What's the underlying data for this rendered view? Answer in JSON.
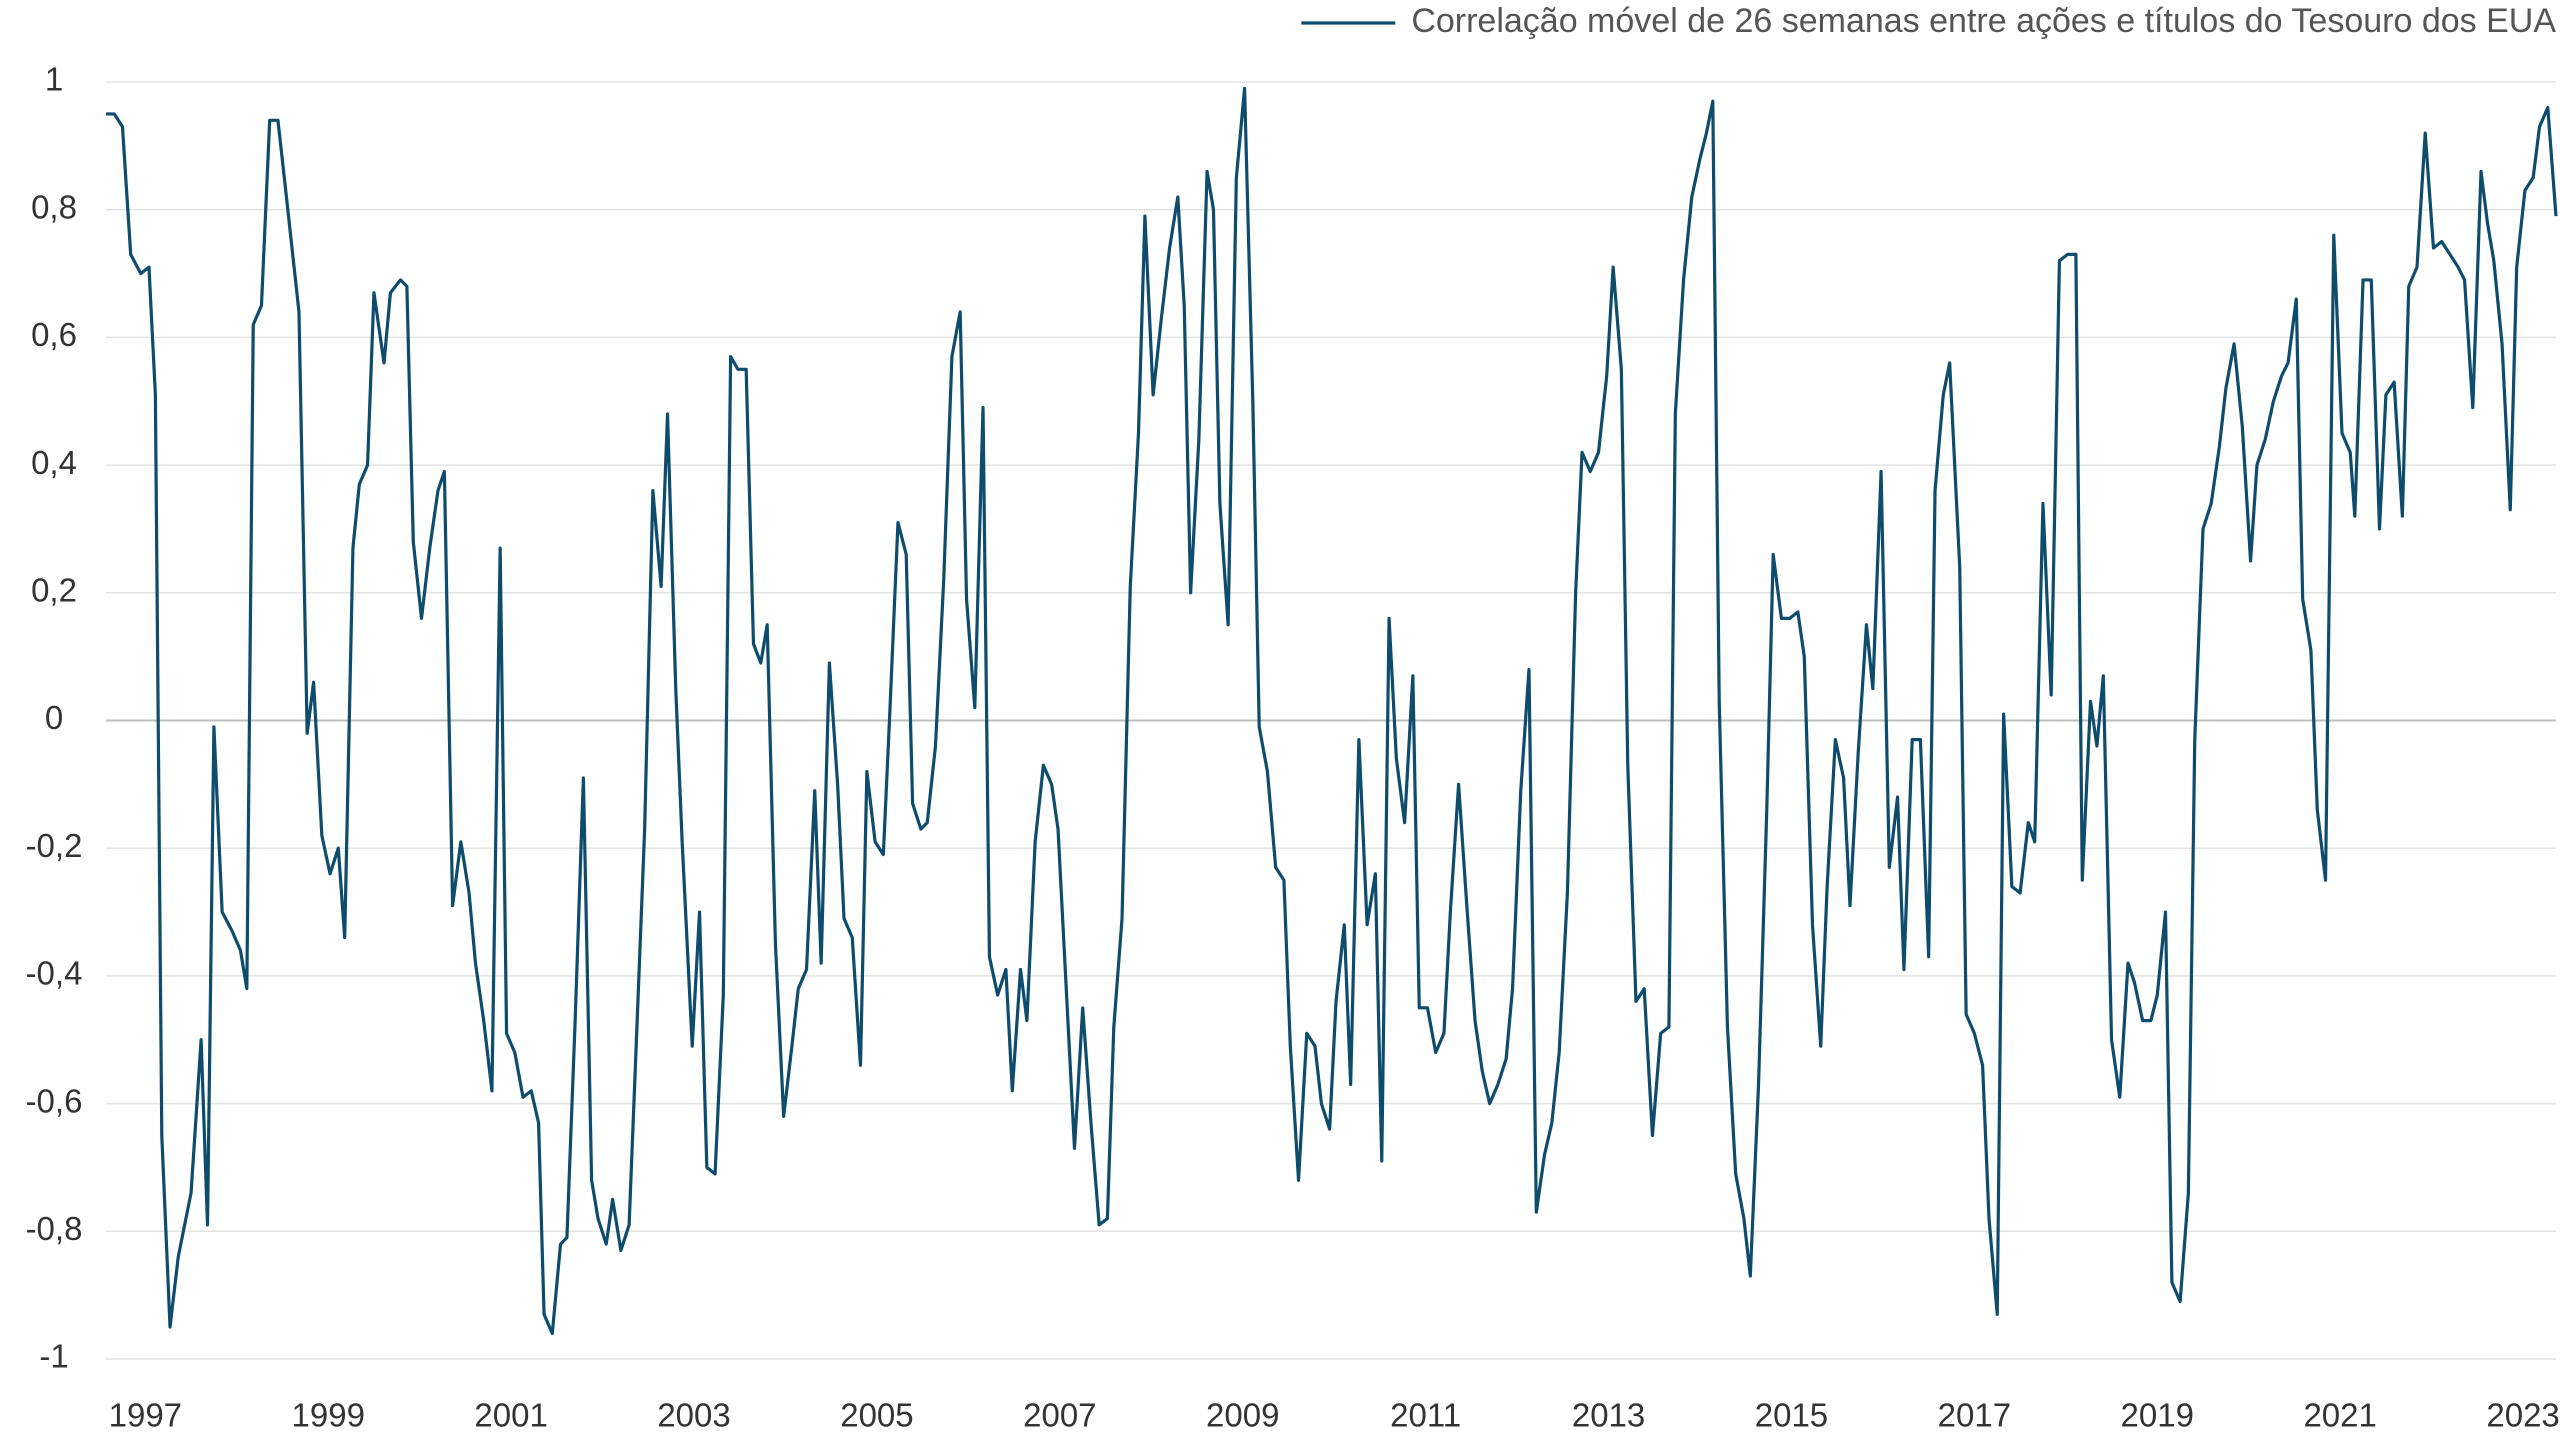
{
  "chart_data": {
    "type": "line",
    "x": [
      1996.57,
      1996.66,
      1996.75,
      1996.84,
      1996.95,
      1997.04,
      1997.11,
      1997.18,
      1997.27,
      1997.36,
      1997.5,
      1997.61,
      1997.68,
      1997.75,
      1997.84,
      1997.95,
      1998.04,
      1998.11,
      1998.18,
      1998.27,
      1998.36,
      1998.45,
      1998.52,
      1998.68,
      1998.77,
      1998.84,
      1998.93,
      1999.02,
      1999.11,
      1999.18,
      1999.27,
      1999.34,
      1999.43,
      1999.5,
      1999.61,
      1999.68,
      1999.79,
      1999.86,
      1999.93,
      2000.02,
      2000.11,
      2000.2,
      2000.27,
      2000.36,
      2000.45,
      2000.54,
      2000.61,
      2000.7,
      2000.79,
      2000.88,
      2000.95,
      2001.04,
      2001.13,
      2001.22,
      2001.3,
      2001.36,
      2001.45,
      2001.54,
      2001.61,
      2001.7,
      2001.79,
      2001.88,
      2001.95,
      2002.04,
      2002.11,
      2002.2,
      2002.29,
      2002.37,
      2002.46,
      2002.55,
      2002.64,
      2002.71,
      2002.8,
      2002.87,
      2002.98,
      2003.06,
      2003.14,
      2003.23,
      2003.32,
      2003.4,
      2003.48,
      2003.57,
      2003.65,
      2003.73,
      2003.8,
      2003.89,
      2003.98,
      2004.07,
      2004.14,
      2004.23,
      2004.32,
      2004.39,
      2004.48,
      2004.57,
      2004.64,
      2004.73,
      2004.82,
      2004.89,
      2004.98,
      2005.07,
      2005.14,
      2005.23,
      2005.32,
      2005.39,
      2005.48,
      2005.55,
      2005.64,
      2005.73,
      2005.82,
      2005.91,
      2005.98,
      2006.07,
      2006.16,
      2006.23,
      2006.32,
      2006.41,
      2006.48,
      2006.57,
      2006.64,
      2006.73,
      2006.82,
      2006.91,
      2006.98,
      2007.07,
      2007.16,
      2007.25,
      2007.34,
      2007.43,
      2007.52,
      2007.59,
      2007.68,
      2007.77,
      2007.86,
      2007.93,
      2008.02,
      2008.11,
      2008.2,
      2008.29,
      2008.36,
      2008.43,
      2008.52,
      2008.61,
      2008.68,
      2008.75,
      2008.84,
      2008.93,
      2009.02,
      2009.11,
      2009.18,
      2009.27,
      2009.36,
      2009.45,
      2009.52,
      2009.61,
      2009.7,
      2009.79,
      2009.86,
      2009.95,
      2010.02,
      2010.11,
      2010.18,
      2010.27,
      2010.36,
      2010.45,
      2010.52,
      2010.6,
      2010.68,
      2010.77,
      2010.86,
      2010.93,
      2011.02,
      2011.11,
      2011.2,
      2011.27,
      2011.36,
      2011.45,
      2011.54,
      2011.62,
      2011.7,
      2011.79,
      2011.88,
      2011.95,
      2012.04,
      2012.13,
      2012.21,
      2012.3,
      2012.38,
      2012.46,
      2012.55,
      2012.64,
      2012.71,
      2012.8,
      2012.89,
      2012.98,
      2013.05,
      2013.14,
      2013.21,
      2013.3,
      2013.39,
      2013.48,
      2013.57,
      2013.66,
      2013.73,
      2013.82,
      2013.91,
      2014.0,
      2014.07,
      2014.14,
      2014.21,
      2014.3,
      2014.39,
      2014.48,
      2014.55,
      2014.64,
      2014.73,
      2014.8,
      2014.89,
      2014.98,
      2015.07,
      2015.14,
      2015.23,
      2015.32,
      2015.39,
      2015.48,
      2015.57,
      2015.64,
      2015.73,
      2015.82,
      2015.89,
      2015.98,
      2016.07,
      2016.16,
      2016.23,
      2016.32,
      2016.41,
      2016.5,
      2016.57,
      2016.66,
      2016.73,
      2016.84,
      2016.91,
      2017.0,
      2017.09,
      2017.16,
      2017.25,
      2017.32,
      2017.41,
      2017.5,
      2017.59,
      2017.66,
      2017.75,
      2017.84,
      2017.93,
      2018.02,
      2018.11,
      2018.18,
      2018.27,
      2018.34,
      2018.41,
      2018.5,
      2018.59,
      2018.68,
      2018.75,
      2018.84,
      2018.93,
      2019.0,
      2019.09,
      2019.16,
      2019.25,
      2019.34,
      2019.41,
      2019.5,
      2019.59,
      2019.68,
      2019.75,
      2019.84,
      2019.93,
      2020.02,
      2020.09,
      2020.18,
      2020.27,
      2020.36,
      2020.43,
      2020.52,
      2020.59,
      2020.68,
      2020.75,
      2020.84,
      2020.93,
      2021.02,
      2021.11,
      2021.16,
      2021.25,
      2021.34,
      2021.43,
      2021.5,
      2021.59,
      2021.68,
      2021.75,
      2021.84,
      2021.93,
      2022.02,
      2022.11,
      2022.2,
      2022.29,
      2022.36,
      2022.45,
      2022.54,
      2022.61,
      2022.68,
      2022.77,
      2022.86,
      2022.93,
      2023.02,
      2023.11,
      2023.18,
      2023.27,
      2023.36
    ],
    "series": [
      {
        "name": "Correlação móvel de 26 semanas entre ações e títulos do Tesouro dos EUA",
        "color": "#0e4c6d",
        "values": [
          0.95,
          0.95,
          0.93,
          0.73,
          0.7,
          0.71,
          0.51,
          -0.65,
          -0.95,
          -0.84,
          -0.74,
          -0.5,
          -0.79,
          -0.01,
          -0.3,
          -0.33,
          -0.36,
          -0.42,
          0.62,
          0.65,
          0.94,
          0.94,
          0.85,
          0.64,
          -0.02,
          0.06,
          -0.18,
          -0.24,
          -0.2,
          -0.34,
          0.27,
          0.37,
          0.4,
          0.67,
          0.56,
          0.67,
          0.69,
          0.68,
          0.28,
          0.16,
          0.27,
          0.36,
          0.39,
          -0.29,
          -0.19,
          -0.27,
          -0.38,
          -0.47,
          -0.58,
          0.27,
          -0.49,
          -0.52,
          -0.59,
          -0.58,
          -0.63,
          -0.93,
          -0.96,
          -0.82,
          -0.81,
          -0.47,
          -0.09,
          -0.72,
          -0.78,
          -0.82,
          -0.75,
          -0.83,
          -0.79,
          -0.5,
          -0.17,
          0.36,
          0.21,
          0.48,
          0.05,
          -0.19,
          -0.51,
          -0.3,
          -0.7,
          -0.71,
          -0.43,
          0.57,
          0.55,
          0.55,
          0.12,
          0.09,
          0.15,
          -0.35,
          -0.62,
          -0.51,
          -0.42,
          -0.39,
          -0.11,
          -0.38,
          0.09,
          -0.1,
          -0.31,
          -0.34,
          -0.54,
          -0.08,
          -0.19,
          -0.21,
          0.01,
          0.31,
          0.26,
          -0.13,
          -0.17,
          -0.16,
          -0.04,
          0.22,
          0.57,
          0.64,
          0.19,
          0.02,
          0.49,
          -0.37,
          -0.43,
          -0.39,
          -0.58,
          -0.39,
          -0.47,
          -0.19,
          -0.07,
          -0.1,
          -0.17,
          -0.42,
          -0.67,
          -0.45,
          -0.63,
          -0.79,
          -0.78,
          -0.48,
          -0.31,
          0.21,
          0.45,
          0.79,
          0.51,
          0.63,
          0.74,
          0.82,
          0.65,
          0.2,
          0.44,
          0.86,
          0.8,
          0.34,
          0.15,
          0.85,
          0.99,
          0.5,
          -0.01,
          -0.08,
          -0.23,
          -0.25,
          -0.51,
          -0.72,
          -0.49,
          -0.51,
          -0.6,
          -0.64,
          -0.44,
          -0.32,
          -0.57,
          -0.03,
          -0.32,
          -0.24,
          -0.69,
          0.16,
          -0.06,
          -0.16,
          0.07,
          -0.45,
          -0.45,
          -0.52,
          -0.49,
          -0.3,
          -0.1,
          -0.29,
          -0.47,
          -0.55,
          -0.6,
          -0.57,
          -0.53,
          -0.42,
          -0.11,
          0.08,
          -0.77,
          -0.68,
          -0.63,
          -0.52,
          -0.27,
          0.2,
          0.42,
          0.39,
          0.42,
          0.54,
          0.71,
          0.55,
          -0.07,
          -0.44,
          -0.42,
          -0.65,
          -0.49,
          -0.48,
          0.48,
          0.69,
          0.82,
          0.88,
          0.92,
          0.97,
          0.03,
          -0.48,
          -0.71,
          -0.78,
          -0.87,
          -0.57,
          -0.14,
          0.26,
          0.16,
          0.16,
          0.17,
          0.1,
          -0.32,
          -0.51,
          -0.26,
          -0.03,
          -0.09,
          -0.29,
          -0.05,
          0.15,
          0.05,
          0.39,
          -0.23,
          -0.12,
          -0.39,
          -0.03,
          -0.03,
          -0.37,
          0.36,
          0.51,
          0.56,
          0.24,
          -0.46,
          -0.49,
          -0.54,
          -0.78,
          -0.93,
          0.01,
          -0.26,
          -0.27,
          -0.16,
          -0.19,
          0.34,
          0.04,
          0.72,
          0.73,
          0.73,
          -0.25,
          0.03,
          -0.04,
          0.07,
          -0.5,
          -0.59,
          -0.38,
          -0.41,
          -0.47,
          -0.47,
          -0.43,
          -0.3,
          -0.88,
          -0.91,
          -0.74,
          -0.03,
          0.3,
          0.34,
          0.43,
          0.52,
          0.59,
          0.46,
          0.25,
          0.4,
          0.44,
          0.5,
          0.54,
          0.56,
          0.66,
          0.19,
          0.11,
          -0.14,
          -0.25,
          0.76,
          0.45,
          0.42,
          0.32,
          0.69,
          0.69,
          0.3,
          0.51,
          0.53,
          0.32,
          0.68,
          0.71,
          0.92,
          0.74,
          0.75,
          0.73,
          0.71,
          0.69,
          0.49,
          0.86,
          0.78,
          0.72,
          0.59,
          0.33,
          0.71,
          0.83,
          0.85,
          0.93,
          0.96,
          0.79
        ]
      }
    ],
    "xlim": [
      1996.57,
      2023.36
    ],
    "xticks": [
      1997,
      1999,
      2001,
      2003,
      2005,
      2007,
      2009,
      2011,
      2013,
      2015,
      2017,
      2019,
      2021,
      2023
    ],
    "ylim": [
      -1,
      1
    ],
    "yticks": [
      -1,
      {
        "value": -0.8,
        "label": "-0,8"
      },
      {
        "value": -0.6,
        "label": "-0,6"
      },
      {
        "value": -0.4,
        "label": "-0,4"
      },
      {
        "value": -0.2,
        "label": "-0,2"
      },
      0,
      {
        "value": 0.2,
        "label": "0,2"
      },
      {
        "value": 0.4,
        "label": "0,4"
      },
      {
        "value": 0.6,
        "label": "0,6"
      },
      {
        "value": 0.8,
        "label": "0,8"
      },
      1
    ],
    "grid": true,
    "legend": "top-right"
  }
}
